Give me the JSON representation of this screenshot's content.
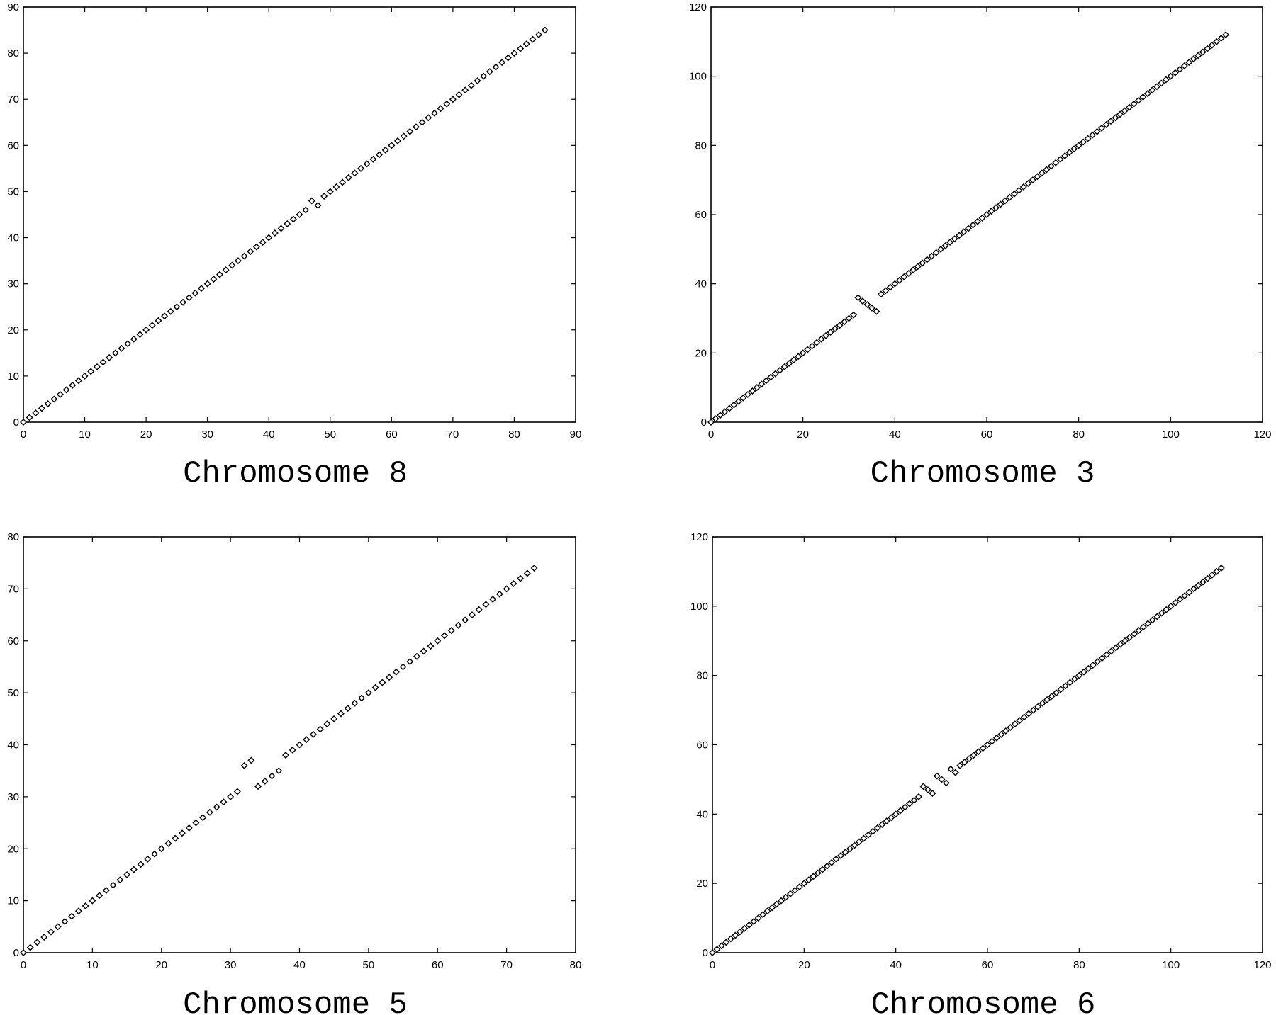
{
  "chart_data": [
    {
      "type": "scatter",
      "title": "Chromosome 8",
      "xlim": [
        0,
        90
      ],
      "ylim": [
        0,
        90
      ],
      "xticks": [
        0,
        10,
        20,
        30,
        40,
        50,
        60,
        70,
        80,
        90
      ],
      "yticks": [
        0,
        10,
        20,
        30,
        40,
        50,
        60,
        70,
        80,
        90
      ],
      "marker": "diamond",
      "series": [
        {
          "x": [
            0,
            1,
            2,
            3,
            4,
            5,
            6,
            7,
            8,
            9,
            10,
            11,
            12,
            13,
            14,
            15,
            16,
            17,
            18,
            19,
            20,
            21,
            22,
            23,
            24,
            25,
            26,
            27,
            28,
            29,
            30,
            31,
            32,
            33,
            34,
            35,
            36,
            37,
            38,
            39,
            40,
            41,
            42,
            43,
            44,
            45,
            46,
            47,
            48,
            49,
            50,
            51,
            52,
            53,
            54,
            55,
            56,
            57,
            58,
            59,
            60,
            61,
            62,
            63,
            64,
            65,
            66,
            67,
            68,
            69,
            70,
            71,
            72,
            73,
            74,
            75,
            76,
            77,
            78,
            79,
            80,
            81,
            82,
            83,
            84,
            85
          ],
          "y": [
            0,
            1,
            2,
            3,
            4,
            5,
            6,
            7,
            8,
            9,
            10,
            11,
            12,
            13,
            14,
            15,
            16,
            17,
            18,
            19,
            20,
            21,
            22,
            23,
            24,
            25,
            26,
            27,
            28,
            29,
            30,
            31,
            32,
            33,
            34,
            35,
            36,
            37,
            38,
            39,
            40,
            41,
            42,
            43,
            44,
            45,
            46,
            48,
            47,
            49,
            50,
            51,
            52,
            53,
            54,
            55,
            56,
            57,
            58,
            59,
            60,
            61,
            62,
            63,
            64,
            65,
            66,
            67,
            68,
            69,
            70,
            71,
            72,
            73,
            74,
            75,
            76,
            77,
            78,
            79,
            80,
            81,
            82,
            83,
            84,
            85
          ]
        }
      ]
    },
    {
      "type": "scatter",
      "title": "Chromosome 3",
      "xlim": [
        0,
        120
      ],
      "ylim": [
        0,
        120
      ],
      "xticks": [
        0,
        20,
        40,
        60,
        80,
        100,
        120
      ],
      "yticks": [
        0,
        20,
        40,
        60,
        80,
        100,
        120
      ],
      "marker": "diamond",
      "series": [
        {
          "x": [
            0,
            1,
            2,
            3,
            4,
            5,
            6,
            7,
            8,
            9,
            10,
            11,
            12,
            13,
            14,
            15,
            16,
            17,
            18,
            19,
            20,
            21,
            22,
            23,
            24,
            25,
            26,
            27,
            28,
            29,
            30,
            31,
            32,
            33,
            34,
            35,
            36,
            37,
            38,
            39,
            40,
            41,
            42,
            43,
            44,
            45,
            46,
            47,
            48,
            49,
            50,
            51,
            52,
            53,
            54,
            55,
            56,
            57,
            58,
            59,
            60,
            61,
            62,
            63,
            64,
            65,
            66,
            67,
            68,
            69,
            70,
            71,
            72,
            73,
            74,
            75,
            76,
            77,
            78,
            79,
            80,
            81,
            82,
            83,
            84,
            85,
            86,
            87,
            88,
            89,
            90,
            91,
            92,
            93,
            94,
            95,
            96,
            97,
            98,
            99,
            100,
            101,
            102,
            103,
            104,
            105,
            106,
            107,
            108,
            109,
            110,
            111,
            112
          ],
          "y": [
            0,
            1,
            2,
            3,
            4,
            5,
            6,
            7,
            8,
            9,
            10,
            11,
            12,
            13,
            14,
            15,
            16,
            17,
            18,
            19,
            20,
            21,
            22,
            23,
            24,
            25,
            26,
            27,
            28,
            29,
            30,
            31,
            36,
            35,
            34,
            33,
            32,
            37,
            38,
            39,
            40,
            41,
            42,
            43,
            44,
            45,
            46,
            47,
            48,
            49,
            50,
            51,
            52,
            53,
            54,
            55,
            56,
            57,
            58,
            59,
            60,
            61,
            62,
            63,
            64,
            65,
            66,
            67,
            68,
            69,
            70,
            71,
            72,
            73,
            74,
            75,
            76,
            77,
            78,
            79,
            80,
            81,
            82,
            83,
            84,
            85,
            86,
            87,
            88,
            89,
            90,
            91,
            92,
            93,
            94,
            95,
            96,
            97,
            98,
            99,
            100,
            101,
            102,
            103,
            104,
            105,
            106,
            107,
            108,
            109,
            110,
            111,
            112
          ]
        }
      ]
    },
    {
      "type": "scatter",
      "title": "Chromosome 5",
      "xlim": [
        0,
        80
      ],
      "ylim": [
        0,
        80
      ],
      "xticks": [
        0,
        10,
        20,
        30,
        40,
        50,
        60,
        70,
        80
      ],
      "yticks": [
        0,
        10,
        20,
        30,
        40,
        50,
        60,
        70,
        80
      ],
      "marker": "diamond",
      "series": [
        {
          "x": [
            0,
            1,
            2,
            3,
            4,
            5,
            6,
            7,
            8,
            9,
            10,
            11,
            12,
            13,
            14,
            15,
            16,
            17,
            18,
            19,
            20,
            21,
            22,
            23,
            24,
            25,
            26,
            27,
            28,
            29,
            30,
            31,
            32,
            33,
            34,
            35,
            36,
            37,
            38,
            39,
            40,
            41,
            42,
            43,
            44,
            45,
            46,
            47,
            48,
            49,
            50,
            51,
            52,
            53,
            54,
            55,
            56,
            57,
            58,
            59,
            60,
            61,
            62,
            63,
            64,
            65,
            66,
            67,
            68,
            69,
            70,
            71,
            72,
            73,
            74
          ],
          "y": [
            0,
            1,
            2,
            3,
            4,
            5,
            6,
            7,
            8,
            9,
            10,
            11,
            12,
            13,
            14,
            15,
            16,
            17,
            18,
            19,
            20,
            21,
            22,
            23,
            24,
            25,
            26,
            27,
            28,
            29,
            30,
            31,
            36,
            37,
            32,
            33,
            34,
            35,
            38,
            39,
            40,
            41,
            42,
            43,
            44,
            45,
            46,
            47,
            48,
            49,
            50,
            51,
            52,
            53,
            54,
            55,
            56,
            57,
            58,
            59,
            60,
            61,
            62,
            63,
            64,
            65,
            66,
            67,
            68,
            69,
            70,
            71,
            72,
            73,
            74
          ]
        }
      ]
    },
    {
      "type": "scatter",
      "title": "Chromosome 6",
      "xlim": [
        0,
        120
      ],
      "ylim": [
        0,
        120
      ],
      "xticks": [
        0,
        20,
        40,
        60,
        80,
        100,
        120
      ],
      "yticks": [
        0,
        20,
        40,
        60,
        80,
        100,
        120
      ],
      "marker": "diamond",
      "series": [
        {
          "x": [
            0,
            1,
            2,
            3,
            4,
            5,
            6,
            7,
            8,
            9,
            10,
            11,
            12,
            13,
            14,
            15,
            16,
            17,
            18,
            19,
            20,
            21,
            22,
            23,
            24,
            25,
            26,
            27,
            28,
            29,
            30,
            31,
            32,
            33,
            34,
            35,
            36,
            37,
            38,
            39,
            40,
            41,
            42,
            43,
            44,
            45,
            46,
            47,
            48,
            49,
            50,
            51,
            52,
            53,
            54,
            55,
            56,
            57,
            58,
            59,
            60,
            61,
            62,
            63,
            64,
            65,
            66,
            67,
            68,
            69,
            70,
            71,
            72,
            73,
            74,
            75,
            76,
            77,
            78,
            79,
            80,
            81,
            82,
            83,
            84,
            85,
            86,
            87,
            88,
            89,
            90,
            91,
            92,
            93,
            94,
            95,
            96,
            97,
            98,
            99,
            100,
            101,
            102,
            103,
            104,
            105,
            106,
            107,
            108,
            109,
            110,
            111
          ],
          "y": [
            0,
            1,
            2,
            3,
            4,
            5,
            6,
            7,
            8,
            9,
            10,
            11,
            12,
            13,
            14,
            15,
            16,
            17,
            18,
            19,
            20,
            21,
            22,
            23,
            24,
            25,
            26,
            27,
            28,
            29,
            30,
            31,
            32,
            33,
            34,
            35,
            36,
            37,
            38,
            39,
            40,
            41,
            42,
            43,
            44,
            45,
            48,
            47,
            46,
            51,
            50,
            49,
            53,
            52,
            54,
            55,
            56,
            57,
            58,
            59,
            60,
            61,
            62,
            63,
            64,
            65,
            66,
            67,
            68,
            69,
            70,
            71,
            72,
            73,
            74,
            75,
            76,
            77,
            78,
            79,
            80,
            81,
            82,
            83,
            84,
            85,
            86,
            87,
            88,
            89,
            90,
            91,
            92,
            93,
            94,
            95,
            96,
            97,
            98,
            99,
            100,
            101,
            102,
            103,
            104,
            105,
            106,
            107,
            108,
            109,
            110,
            111
          ]
        }
      ]
    }
  ]
}
